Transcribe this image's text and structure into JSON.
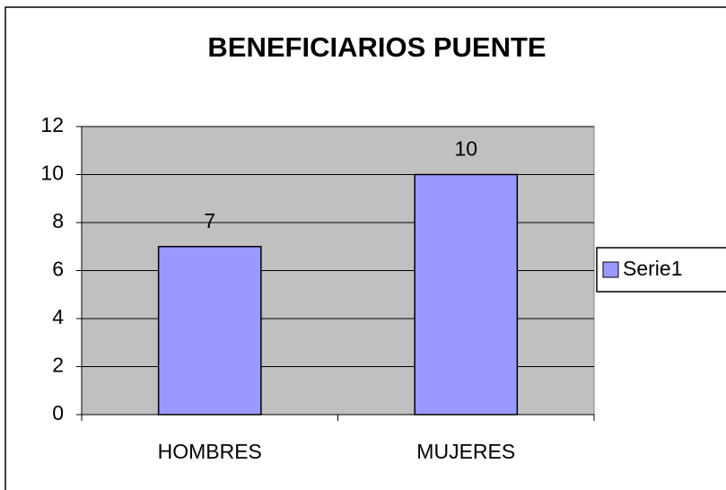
{
  "chart_data": {
    "type": "bar",
    "title": "BENEFICIARIOS PUENTE",
    "categories": [
      "HOMBRES",
      "MUJERES"
    ],
    "series": [
      {
        "name": "Serie1",
        "color": "#9999ff",
        "values": [
          7,
          10
        ]
      }
    ],
    "ylim": [
      0,
      12
    ],
    "yticks": [
      0,
      2,
      4,
      6,
      8,
      10,
      12
    ],
    "grid": true,
    "legend": "right"
  }
}
